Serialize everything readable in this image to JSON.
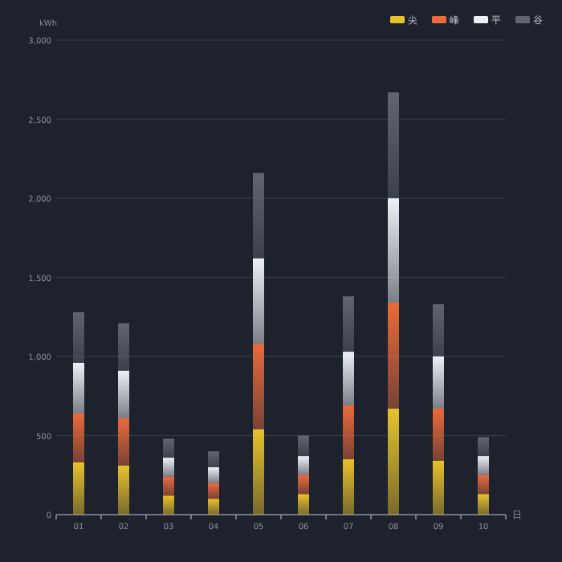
{
  "chart_data": {
    "type": "bar",
    "stacked": true,
    "ylabel": "kWh",
    "xlabel": "日",
    "categories": [
      "01",
      "02",
      "03",
      "04",
      "05",
      "06",
      "07",
      "08",
      "09",
      "10"
    ],
    "series": [
      {
        "name": "尖",
        "color": "#e8c22c",
        "values": [
          330,
          310,
          120,
          100,
          540,
          130,
          350,
          670,
          340,
          130
        ]
      },
      {
        "name": "峰",
        "color": "#ea6a3c",
        "values": [
          310,
          300,
          120,
          100,
          540,
          120,
          340,
          670,
          330,
          120
        ]
      },
      {
        "name": "平",
        "color": "#eef0f6",
        "values": [
          320,
          300,
          120,
          100,
          540,
          120,
          340,
          660,
          330,
          120
        ]
      },
      {
        "name": "谷",
        "color": "#60656f",
        "values": [
          320,
          300,
          120,
          100,
          540,
          130,
          350,
          670,
          330,
          120
        ]
      }
    ],
    "ylim": [
      0,
      3000
    ],
    "yticks": [
      0,
      {
        "value": 500,
        "label": "500"
      },
      {
        "value": 1000,
        "label": "1,000"
      },
      {
        "value": 1500,
        "label": "1,500"
      },
      {
        "value": 2000,
        "label": "2,000"
      },
      {
        "value": 2500,
        "label": "2,500"
      },
      {
        "value": 3000,
        "label": "3,000"
      }
    ],
    "grid": "y",
    "legend": "top right"
  }
}
